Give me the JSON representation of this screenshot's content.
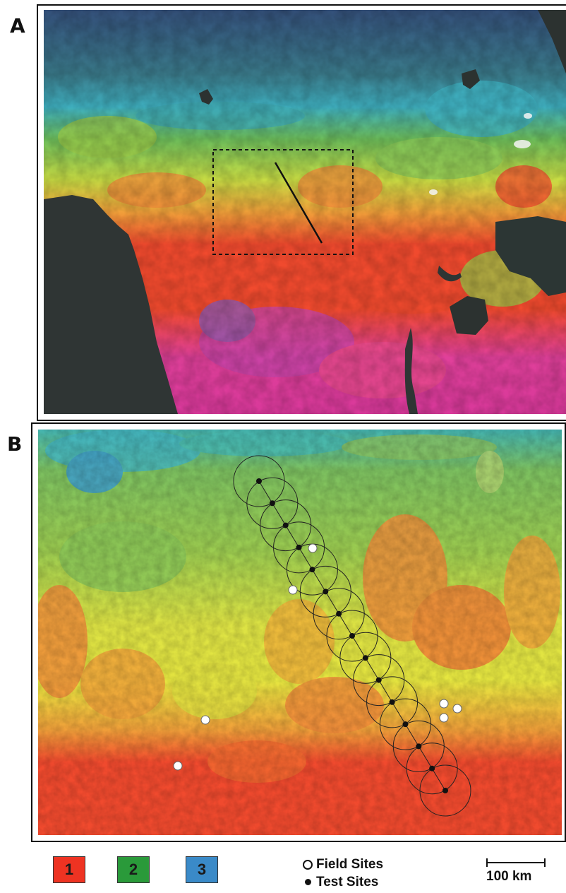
{
  "panels": {
    "a": {
      "letter": "A"
    },
    "b": {
      "letter": "B"
    }
  },
  "legend": {
    "classes": [
      {
        "label": "1",
        "color": "#ee3322"
      },
      {
        "label": "2",
        "color": "#2a9a3a"
      },
      {
        "label": "3",
        "color": "#3a8ac8"
      }
    ],
    "field_sites_label": "Field Sites",
    "test_sites_label": "Test Sites",
    "scale_label": "100 km"
  },
  "colors": {
    "water": "#2f3534",
    "deep_blue": "#34507a",
    "cyan": "#3fb0c0",
    "green": "#7cc258",
    "yellow": "#e6e640",
    "orange": "#f08a3a",
    "red": "#f04a2e",
    "magenta": "#d8389a"
  }
}
